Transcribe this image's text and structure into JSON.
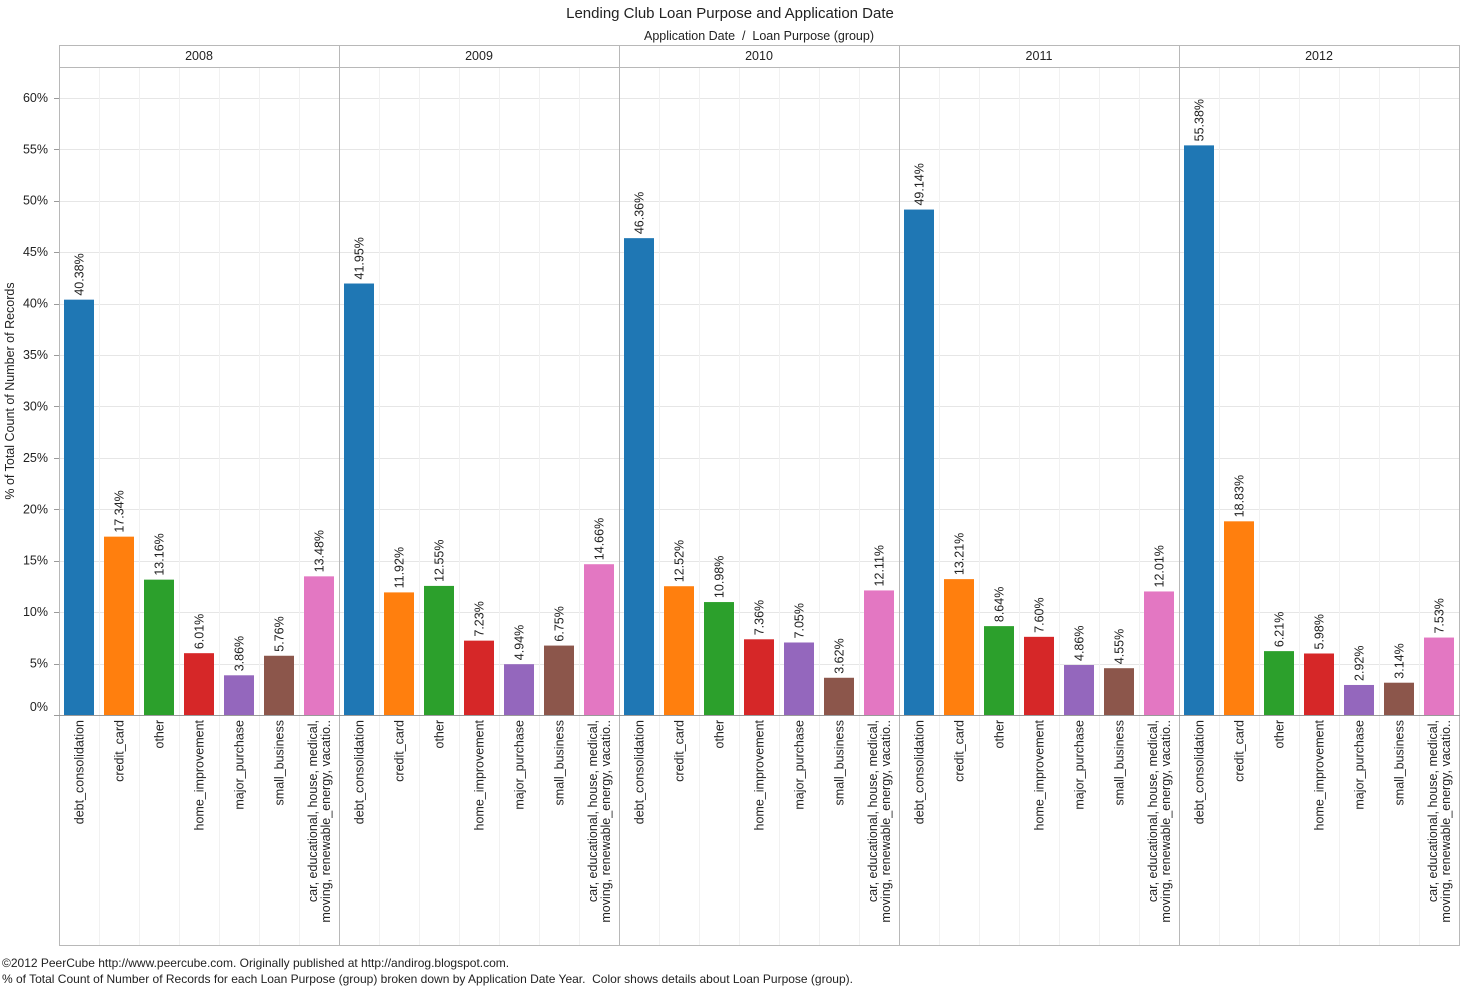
{
  "chart_data": {
    "type": "bar",
    "title": "Lending Club Loan Purpose and Application Date",
    "subtitle": "Application Date  /  Loan Purpose (group)",
    "xlabel": "",
    "ylabel": "% of Total Count of Number of Records",
    "ylim": [
      0,
      63
    ],
    "yticks": [
      0,
      5,
      10,
      15,
      20,
      25,
      30,
      35,
      40,
      45,
      50,
      55,
      60
    ],
    "value_suffix": "%",
    "grid": true,
    "categories": [
      "debt_consolidation",
      "credit_card",
      "other",
      "home_improvement",
      "major_purchase",
      "small_business",
      "car, educational, house, medical, moving, renewable_energy, vacatio.."
    ],
    "colors": [
      "#1F77B4",
      "#FF7F0E",
      "#2CA02C",
      "#D62728",
      "#9467BD",
      "#8C564B",
      "#E377C2"
    ],
    "series": [
      {
        "name": "2008",
        "values": [
          40.38,
          17.34,
          13.16,
          6.01,
          3.86,
          5.76,
          13.48
        ]
      },
      {
        "name": "2009",
        "values": [
          41.95,
          11.92,
          12.55,
          7.23,
          4.94,
          6.75,
          14.66
        ]
      },
      {
        "name": "2010",
        "values": [
          46.36,
          12.52,
          10.98,
          7.36,
          7.05,
          3.62,
          12.11
        ]
      },
      {
        "name": "2011",
        "values": [
          49.14,
          13.21,
          8.64,
          7.6,
          4.86,
          4.55,
          12.01
        ]
      },
      {
        "name": "2012",
        "values": [
          55.38,
          18.83,
          6.21,
          5.98,
          2.92,
          3.14,
          7.53
        ]
      }
    ]
  },
  "footer": {
    "credit": "©2012 PeerCube http://www.peercube.com. Originally published at http://andirog.blogspot.com.",
    "caption": "% of Total Count of Number of Records for each Loan Purpose (group) broken down by Application Date Year.  Color shows details about Loan Purpose (group)."
  }
}
